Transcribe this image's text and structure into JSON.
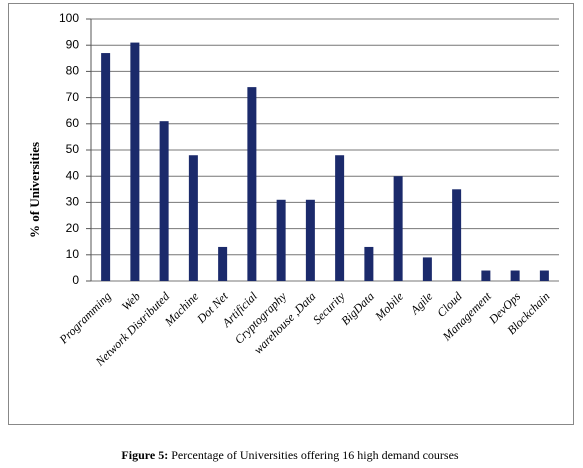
{
  "chart_data": {
    "type": "bar",
    "ylabel": "% of Universities",
    "categories": [
      "Programming",
      "Web",
      "Network Distributed",
      "Machine",
      "Dot Net",
      "Artificial",
      "Cryptography",
      "warehouse ,Data",
      "Security",
      "BigData",
      "Mobile",
      "Agile",
      "Cloud",
      "Management",
      "DevOps",
      "Blockchain"
    ],
    "values": [
      87,
      91,
      61,
      48,
      13,
      74,
      31,
      31,
      48,
      13,
      40,
      9,
      35,
      4,
      4,
      4
    ],
    "color": "#1b2a6b",
    "ylim": [
      0,
      100
    ],
    "yticks": [
      0,
      10,
      20,
      30,
      40,
      50,
      60,
      70,
      80,
      90,
      100
    ],
    "grid": true
  },
  "caption": {
    "label": "Figure 5:",
    "text": "Percentage of Universities offering 16 high demand courses"
  }
}
